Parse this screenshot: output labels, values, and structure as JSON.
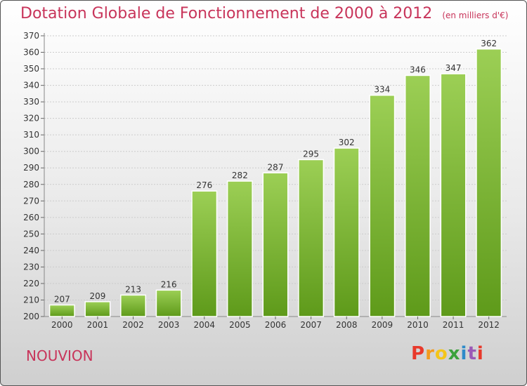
{
  "title": "Dotation Globale de Fonctionnement de 2000 à 2012",
  "unit_note": "(en milliers d'€)",
  "commune": "NOUVION",
  "logo": {
    "text": "Proxiti",
    "colors": [
      "#e8392b",
      "#f29b1d",
      "#f4c519",
      "#3aa23b",
      "#2e8bc9",
      "#9b59b6",
      "#e8392b"
    ]
  },
  "chart_data": {
    "type": "bar",
    "title": "Dotation Globale de Fonctionnement de 2000 à 2012",
    "subtitle": "(en milliers d'€)",
    "categories": [
      "2000",
      "2001",
      "2002",
      "2003",
      "2004",
      "2005",
      "2006",
      "2007",
      "2008",
      "2009",
      "2010",
      "2011",
      "2012"
    ],
    "values": [
      207,
      209,
      213,
      216,
      276,
      282,
      287,
      295,
      302,
      334,
      346,
      347,
      362
    ],
    "ylim": [
      200,
      370
    ],
    "yticks": [
      200,
      210,
      220,
      230,
      240,
      250,
      260,
      270,
      280,
      290,
      300,
      310,
      320,
      330,
      340,
      350,
      360,
      370
    ],
    "grid": true,
    "colors": {
      "bar_top": "#9ccf55",
      "bar_bottom": "#5e9a1a",
      "grid": "#cccccc",
      "title": "#c8345a"
    }
  }
}
